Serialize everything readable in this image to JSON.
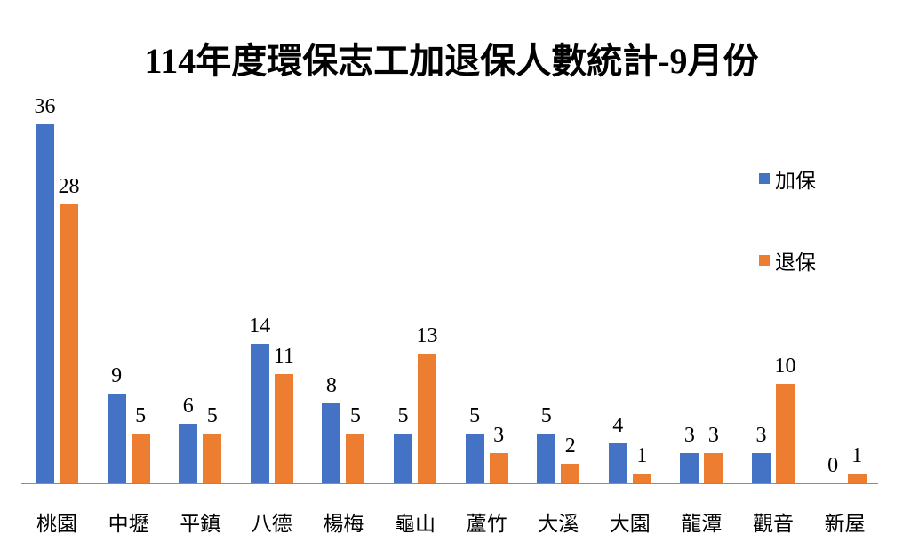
{
  "chart_data": {
    "type": "bar",
    "title": "114年度環保志工加退保人數統計-9月份",
    "xlabel": "",
    "ylabel": "",
    "ylim": [
      0,
      36
    ],
    "grid": false,
    "legend_position": "right",
    "categories": [
      "桃園",
      "中壢",
      "平鎮",
      "八德",
      "楊梅",
      "龜山",
      "蘆竹",
      "大溪",
      "大園",
      "龍潭",
      "觀音",
      "新屋"
    ],
    "series": [
      {
        "name": "加保",
        "color": "#4472C4",
        "values": [
          36,
          9,
          6,
          14,
          8,
          5,
          5,
          5,
          4,
          3,
          3,
          0
        ]
      },
      {
        "name": "退保",
        "color": "#ED7D31",
        "values": [
          28,
          5,
          5,
          11,
          5,
          13,
          3,
          2,
          1,
          3,
          10,
          1
        ]
      }
    ],
    "data_labels": true
  },
  "legend": {
    "items": [
      {
        "label": "加保",
        "color": "#4472C4"
      },
      {
        "label": "退保",
        "color": "#ED7D31"
      }
    ]
  }
}
